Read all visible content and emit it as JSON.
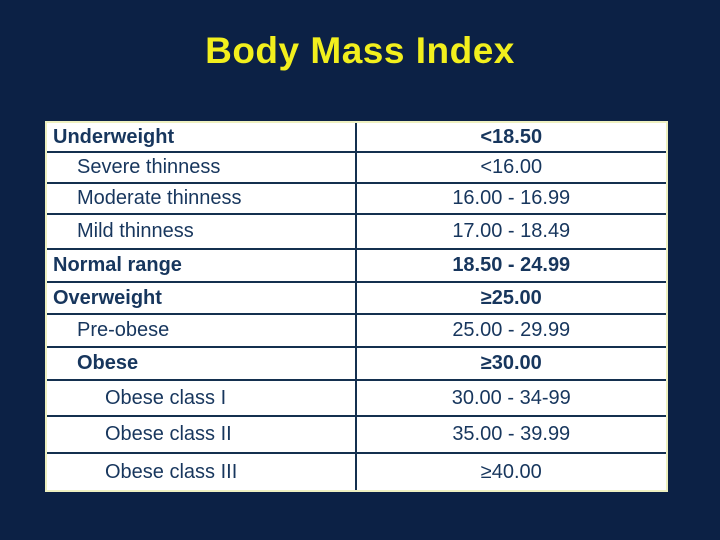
{
  "slide": {
    "title": "Body Mass Index"
  },
  "table": {
    "rows": [
      {
        "label": "Underweight",
        "value": "<18.50",
        "indent": 0,
        "bold": true
      },
      {
        "label": "Severe thinness",
        "value": "<16.00",
        "indent": 1,
        "bold": false
      },
      {
        "label": "Moderate thinness",
        "value": "16.00 - 16.99",
        "indent": 1,
        "bold": false
      },
      {
        "label": "Mild thinness",
        "value": "17.00 - 18.49",
        "indent": 1,
        "bold": false
      },
      {
        "label": "Normal range",
        "value": "18.50 - 24.99",
        "indent": 0,
        "bold": true
      },
      {
        "label": "Overweight",
        "value": "≥25.00",
        "indent": 0,
        "bold": true
      },
      {
        "label": "Pre-obese",
        "value": "25.00 - 29.99",
        "indent": 1,
        "bold": false
      },
      {
        "label": "Obese",
        "value": "≥30.00",
        "indent": 1,
        "bold": true
      },
      {
        "label": "Obese class I",
        "value": "30.00 - 34-99",
        "indent": 2,
        "bold": false
      },
      {
        "label": "Obese class II",
        "value": "35.00 - 39.99",
        "indent": 2,
        "bold": false
      },
      {
        "label": "Obese class III",
        "value": "≥40.00",
        "indent": 2,
        "bold": false
      }
    ]
  },
  "colors": {
    "background": "#0c2145",
    "title_text": "#f2ef1d",
    "cell_text": "#17365d",
    "cell_background": "#ffffff",
    "outer_border": "#eef0c0",
    "grid_line": "#14304f"
  }
}
